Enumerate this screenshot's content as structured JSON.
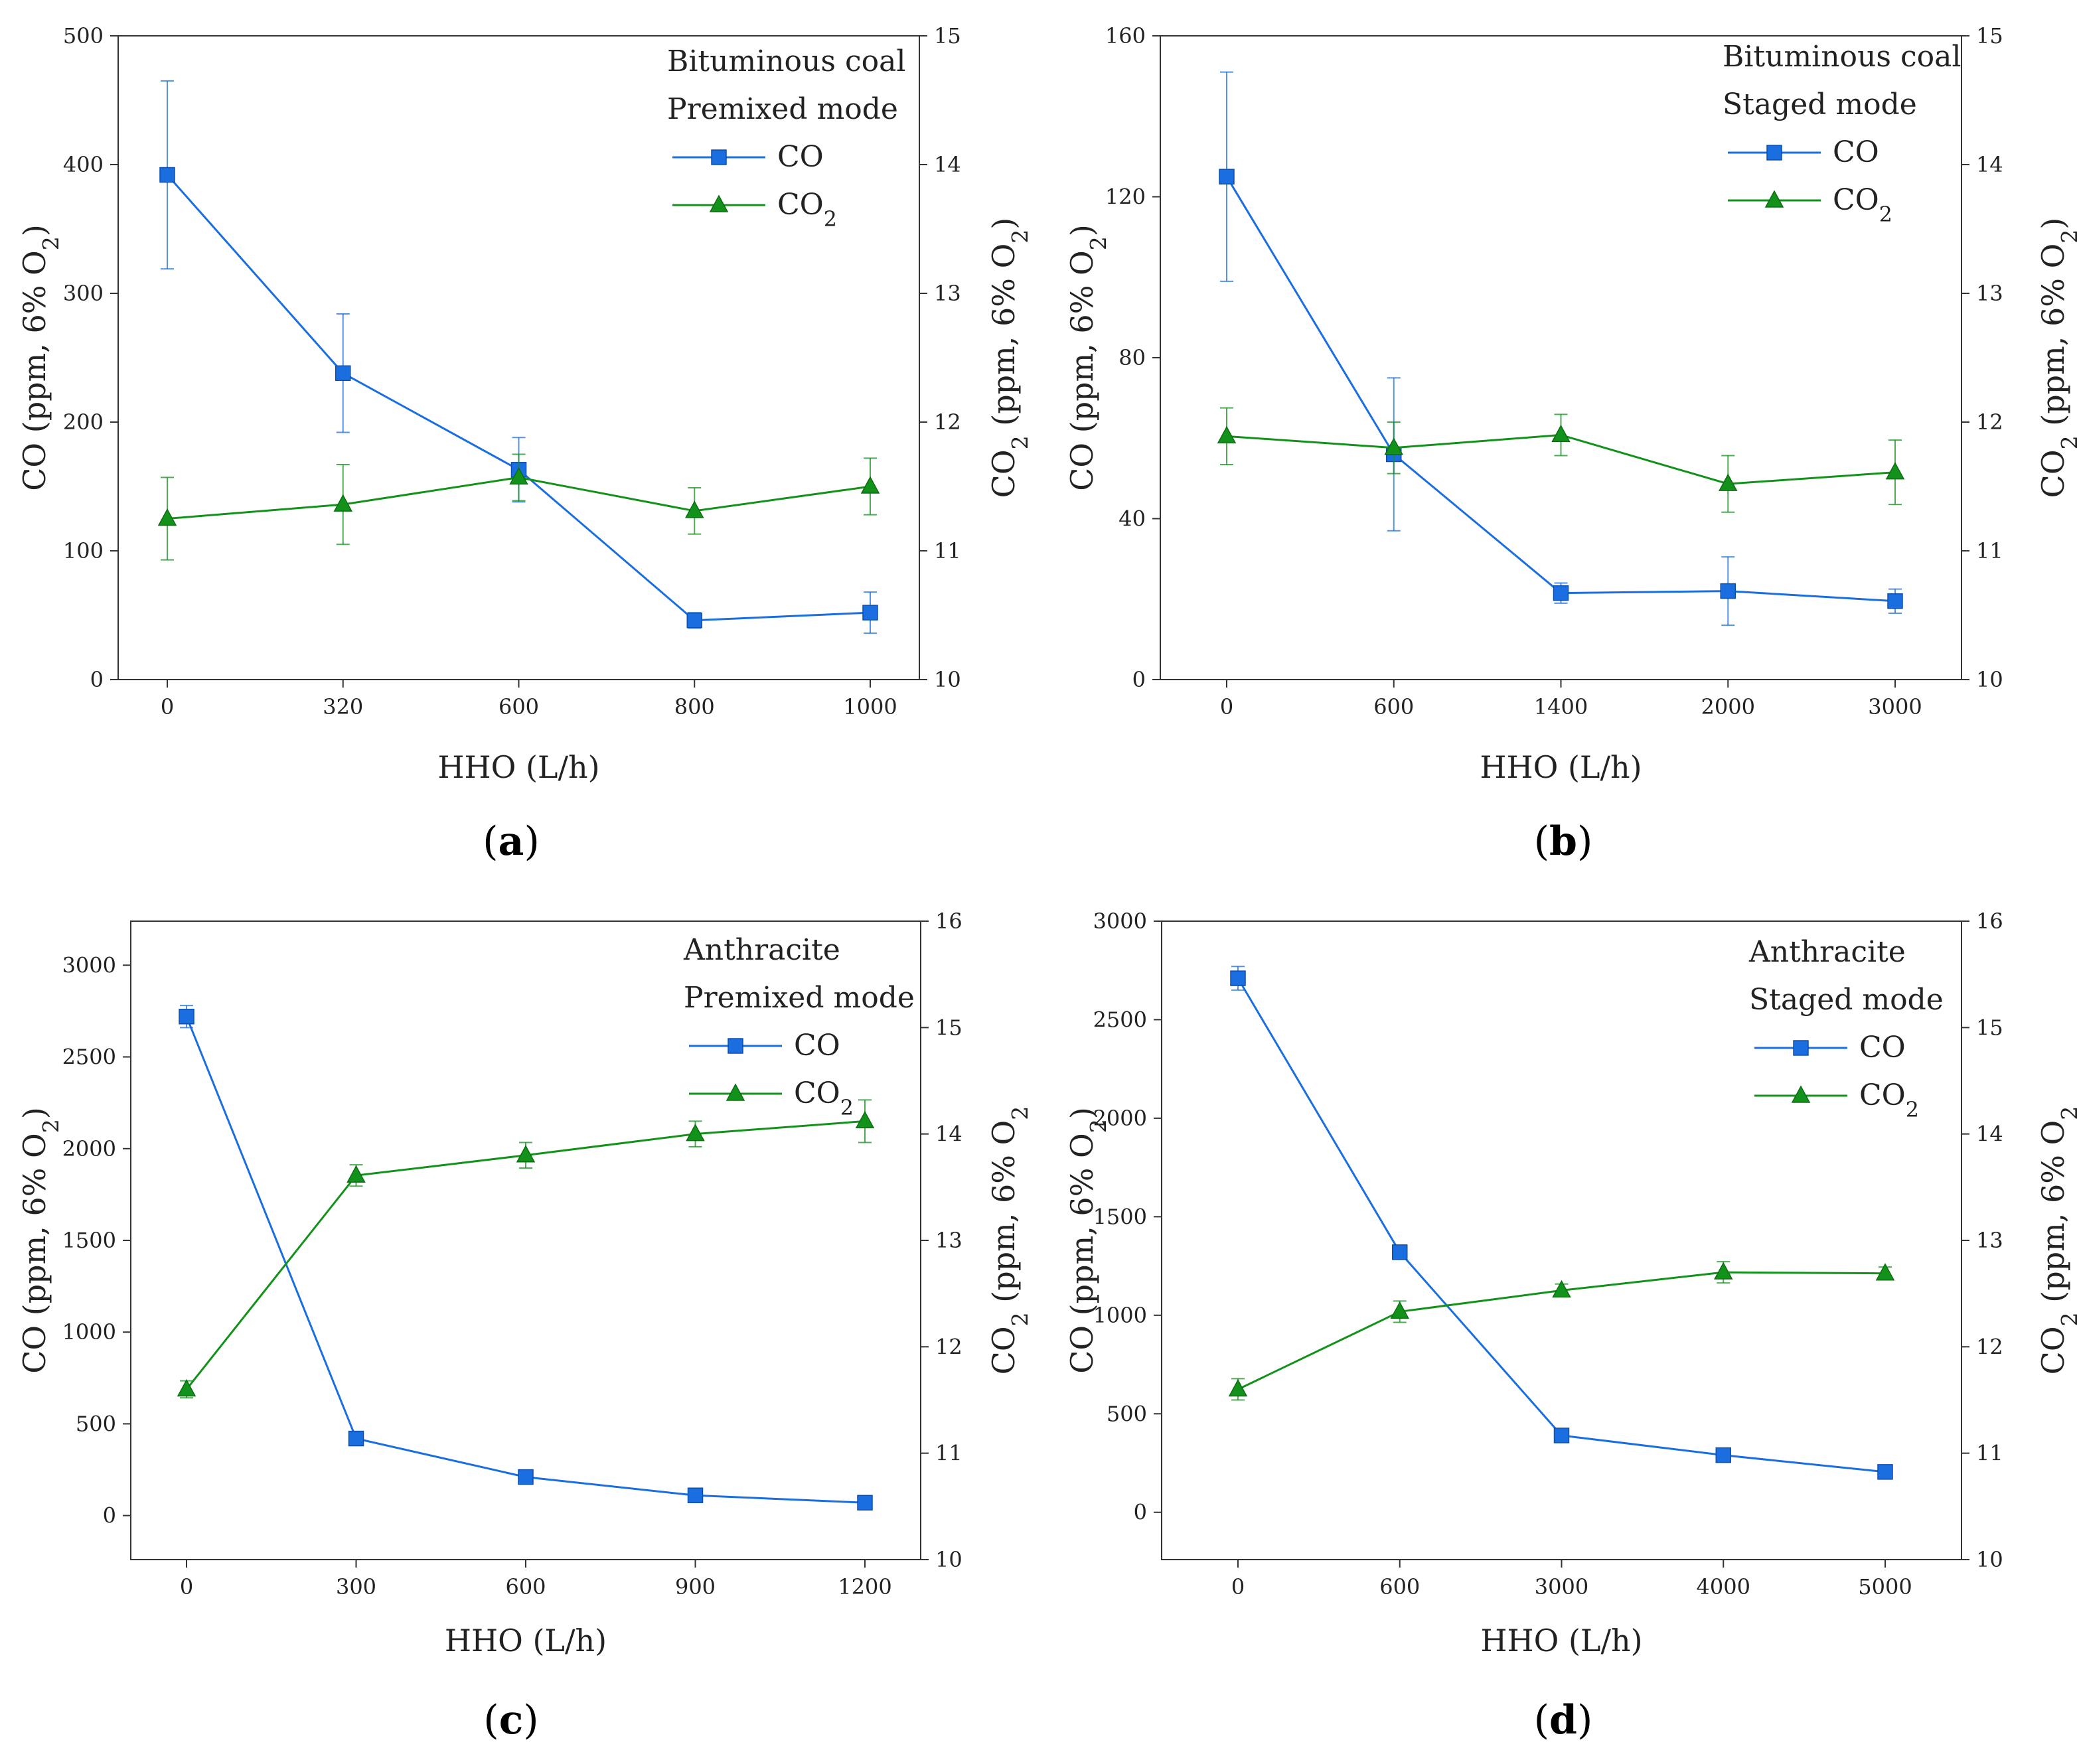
{
  "figure": {
    "series_colors": {
      "CO": "#1a6ee0",
      "CO2": "#13921b"
    }
  },
  "chart_data": [
    {
      "type": "line",
      "panel_label": "a",
      "annotations": [
        "Bituminous coal",
        "Premixed mode"
      ],
      "xlabel": "HHO (L/h)",
      "ylabel_left": "CO (ppm, 6% O2)",
      "ylabel_right": "CO2 (ppm, 6% O2)",
      "categories": [
        "0",
        "320",
        "600",
        "800",
        "1000"
      ],
      "ylim_left": [
        0,
        500
      ],
      "yticks_left": [
        0,
        100,
        200,
        300,
        400,
        500
      ],
      "ylim_right": [
        10,
        15
      ],
      "yticks_right": [
        10,
        11,
        12,
        13,
        14,
        15
      ],
      "legend_placement": "top-right",
      "series": [
        {
          "name": "CO",
          "axis": "left",
          "marker": "square",
          "values": [
            392,
            238,
            163,
            46,
            52
          ],
          "errors": [
            73,
            46,
            25,
            6,
            16
          ]
        },
        {
          "name": "CO2",
          "axis": "right",
          "marker": "triangle",
          "values": [
            11.25,
            11.36,
            11.57,
            11.31,
            11.5
          ],
          "errors": [
            0.32,
            0.31,
            0.18,
            0.18,
            0.22
          ]
        }
      ]
    },
    {
      "type": "line",
      "panel_label": "b",
      "annotations": [
        "Bituminous coal",
        "Staged mode"
      ],
      "xlabel": "HHO (L/h)",
      "ylabel_left": "CO (ppm, 6% O2)",
      "ylabel_right": "CO2 (ppm, 6% O2)",
      "categories": [
        "0",
        "600",
        "1400",
        "2000",
        "3000"
      ],
      "ylim_left": [
        0,
        160
      ],
      "yticks_left": [
        0,
        40,
        80,
        120,
        160
      ],
      "ylim_right": [
        10,
        15
      ],
      "yticks_right": [
        10,
        11,
        12,
        13,
        14,
        15
      ],
      "legend_placement": "top-right",
      "series": [
        {
          "name": "CO",
          "axis": "left",
          "marker": "square",
          "values": [
            125,
            56,
            21.5,
            22,
            19.5
          ],
          "errors": [
            26,
            19,
            2.5,
            8.5,
            3
          ]
        },
        {
          "name": "CO2",
          "axis": "right",
          "marker": "triangle",
          "values": [
            11.89,
            11.8,
            11.9,
            11.52,
            11.61
          ],
          "errors": [
            0.22,
            0.2,
            0.16,
            0.22,
            0.25
          ]
        }
      ]
    },
    {
      "type": "line",
      "panel_label": "c",
      "annotations": [
        "Anthracite",
        "Premixed mode"
      ],
      "xlabel": "HHO (L/h)",
      "ylabel_left": "CO (ppm, 6% O2)",
      "ylabel_right": "CO2 (ppm, 6% O2",
      "categories": [
        "0",
        "300",
        "600",
        "900",
        "1200"
      ],
      "ylim_left": [
        -240,
        3240
      ],
      "yticks_left": [
        0,
        500,
        1000,
        1500,
        2000,
        2500,
        3000
      ],
      "ylim_right": [
        10,
        16
      ],
      "yticks_right": [
        10,
        11,
        12,
        13,
        14,
        15,
        16
      ],
      "legend_placement": "top-right",
      "series": [
        {
          "name": "CO",
          "axis": "left",
          "marker": "square",
          "values": [
            2720,
            420,
            210,
            110,
            70
          ],
          "errors": [
            60,
            18,
            15,
            12,
            10
          ]
        },
        {
          "name": "CO2",
          "axis": "right",
          "marker": "triangle",
          "values": [
            11.6,
            13.61,
            13.8,
            14.0,
            14.12
          ],
          "errors": [
            0.08,
            0.1,
            0.12,
            0.12,
            0.2
          ]
        }
      ]
    },
    {
      "type": "line",
      "panel_label": "d",
      "annotations": [
        "Anthracite",
        "Staged mode"
      ],
      "xlabel": "HHO (L/h)",
      "ylabel_left": "CO (ppm, 6% O2)",
      "ylabel_right": "CO2 (ppm, 6% O2",
      "categories": [
        "0",
        "600",
        "3000",
        "4000",
        "5000"
      ],
      "ylim_left": [
        -240,
        3000
      ],
      "yticks_left": [
        0,
        500,
        1000,
        1500,
        2000,
        2500,
        3000
      ],
      "ylim_right": [
        10,
        16
      ],
      "yticks_right": [
        10,
        11,
        12,
        13,
        14,
        15,
        16
      ],
      "legend_placement": "top-right",
      "series": [
        {
          "name": "CO",
          "axis": "left",
          "marker": "square",
          "values": [
            2710,
            1320,
            390,
            290,
            205
          ],
          "errors": [
            60,
            15,
            15,
            15,
            12
          ]
        },
        {
          "name": "CO2",
          "axis": "right",
          "marker": "triangle",
          "values": [
            11.6,
            12.33,
            12.53,
            12.7,
            12.69
          ],
          "errors": [
            0.1,
            0.1,
            0.06,
            0.1,
            0.06
          ]
        }
      ]
    }
  ]
}
